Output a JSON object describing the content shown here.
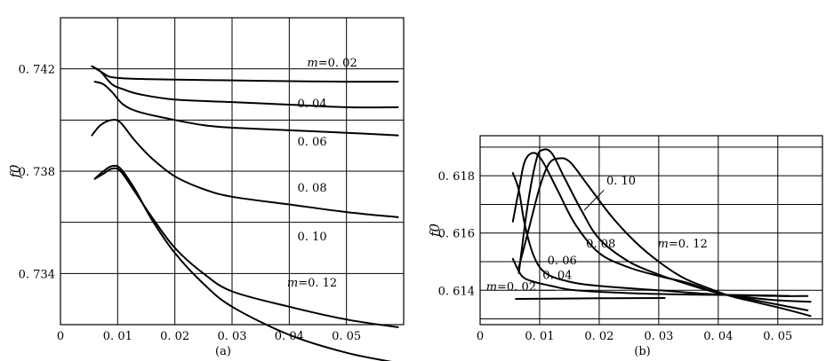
{
  "chart_data": [
    {
      "id": "a",
      "type": "line",
      "caption": "(a)",
      "ylabel": "f0",
      "xlim": [
        0,
        0.06
      ],
      "ylim": [
        0.732,
        0.744
      ],
      "xticks": [
        0.01,
        0.02,
        0.03,
        0.04,
        0.05
      ],
      "xtick_labels": [
        "0. 01",
        "0. 02",
        "0. 03",
        "0. 04",
        "0. 05"
      ],
      "origin_label": "0",
      "yticks": [
        0.734,
        0.738,
        0.742
      ],
      "ytick_labels": [
        "0. 734",
        "0. 738",
        "0. 742"
      ],
      "grid": true,
      "series": [
        {
          "name": "m=0. 02",
          "x": [
            0.0055,
            0.007,
            0.0085,
            0.01,
            0.012,
            0.015,
            0.02,
            0.03,
            0.04,
            0.05,
            0.059
          ],
          "y": [
            0.7421,
            0.7419,
            0.7417,
            0.74165,
            0.74162,
            0.7416,
            0.74158,
            0.74155,
            0.74152,
            0.7415,
            0.7415
          ]
        },
        {
          "name": "0. 04",
          "x": [
            0.0055,
            0.007,
            0.009,
            0.011,
            0.014,
            0.02,
            0.03,
            0.04,
            0.05,
            0.059
          ],
          "y": [
            0.7421,
            0.7419,
            0.7414,
            0.7412,
            0.741,
            0.7408,
            0.7407,
            0.7406,
            0.7405,
            0.7405
          ]
        },
        {
          "name": "0. 06",
          "x": [
            0.006,
            0.0075,
            0.009,
            0.011,
            0.014,
            0.02,
            0.025,
            0.03,
            0.04,
            0.05,
            0.059
          ],
          "y": [
            0.7415,
            0.7414,
            0.7411,
            0.7406,
            0.7403,
            0.74,
            0.7398,
            0.7397,
            0.7396,
            0.7395,
            0.7394
          ]
        },
        {
          "name": "0. 08",
          "x": [
            0.0055,
            0.007,
            0.009,
            0.0105,
            0.013,
            0.016,
            0.02,
            0.025,
            0.03,
            0.04,
            0.05,
            0.059
          ],
          "y": [
            0.7394,
            0.7398,
            0.74,
            0.7399,
            0.7392,
            0.7385,
            0.7378,
            0.7373,
            0.737,
            0.7367,
            0.7364,
            0.7362
          ]
        },
        {
          "name": "0. 10",
          "x": [
            0.006,
            0.0075,
            0.009,
            0.0105,
            0.013,
            0.016,
            0.02,
            0.025,
            0.03,
            0.04,
            0.05,
            0.059
          ],
          "y": [
            0.7377,
            0.7379,
            0.7381,
            0.738,
            0.7372,
            0.7362,
            0.735,
            0.734,
            0.7333,
            0.7327,
            0.7322,
            0.7319
          ]
        },
        {
          "name": "m=0. 12",
          "x": [],
          "y": []
        }
      ]
    },
    {
      "id": "b",
      "type": "line",
      "caption": "(b)",
      "ylabel": "f0",
      "xlim": [
        0,
        0.0575
      ],
      "ylim": [
        0.6128,
        0.6194
      ],
      "xticks": [
        0.01,
        0.02,
        0.03,
        0.04,
        0.05
      ],
      "xtick_labels": [
        "0. 01",
        "0. 02",
        "0. 03",
        "0. 04",
        "0. 05"
      ],
      "origin_label": "0",
      "yticks": [
        0.614,
        0.616,
        0.618
      ],
      "ytick_labels": [
        "0. 614",
        "0. 616",
        "0. 618"
      ],
      "grid": true,
      "series": [
        {
          "name": "m=0. 02",
          "x": [
            0.006,
            0.02,
            0.031
          ],
          "y": [
            0.6137,
            0.61372,
            0.61373
          ]
        },
        {
          "name": "0. 04",
          "x": [
            0.0055,
            0.007,
            0.009,
            0.012,
            0.016,
            0.025,
            0.035,
            0.045,
            0.052
          ],
          "y": [
            0.6151,
            0.6145,
            0.6143,
            0.61415,
            0.614,
            0.6139,
            0.61385,
            0.61383,
            0.6138
          ]
        },
        {
          "name": "0. 06",
          "x": [
            0.0055,
            0.0065,
            0.0075,
            0.009,
            0.011,
            0.015,
            0.02,
            0.03,
            0.04,
            0.05,
            0.055
          ],
          "y": [
            0.6181,
            0.6175,
            0.6163,
            0.6152,
            0.6146,
            0.6143,
            0.61415,
            0.614,
            0.61385,
            0.6138,
            0.6138
          ]
        },
        {
          "name": "0. 08",
          "x": [
            0.0055,
            0.0065,
            0.0075,
            0.009,
            0.0105,
            0.013,
            0.016,
            0.02,
            0.025,
            0.03,
            0.035,
            0.04,
            0.045,
            0.05,
            0.0555
          ],
          "y": [
            0.6164,
            0.6175,
            0.6185,
            0.6188,
            0.6185,
            0.6175,
            0.6163,
            0.6153,
            0.6148,
            0.6145,
            0.61425,
            0.6139,
            0.61375,
            0.61365,
            0.6136
          ]
        },
        {
          "name": "0. 10",
          "x": [
            0.0065,
            0.008,
            0.0095,
            0.0105,
            0.012,
            0.014,
            0.017,
            0.02,
            0.025,
            0.03,
            0.035,
            0.04,
            0.045,
            0.05,
            0.055
          ],
          "y": [
            0.6146,
            0.617,
            0.6186,
            0.6189,
            0.6188,
            0.618,
            0.6168,
            0.6158,
            0.615,
            0.61455,
            0.6142,
            0.6139,
            0.6137,
            0.6135,
            0.6133
          ]
        },
        {
          "name": "m=0. 12",
          "x": [
            0.0065,
            0.008,
            0.01,
            0.0115,
            0.013,
            0.015,
            0.018,
            0.022,
            0.026,
            0.03,
            0.034,
            0.038,
            0.042,
            0.047,
            0.052,
            0.0555
          ],
          "y": [
            0.6148,
            0.616,
            0.6176,
            0.6184,
            0.6186,
            0.6185,
            0.6177,
            0.6166,
            0.6157,
            0.615,
            0.61445,
            0.6141,
            0.6138,
            0.61355,
            0.6133,
            0.6131
          ]
        }
      ]
    }
  ]
}
